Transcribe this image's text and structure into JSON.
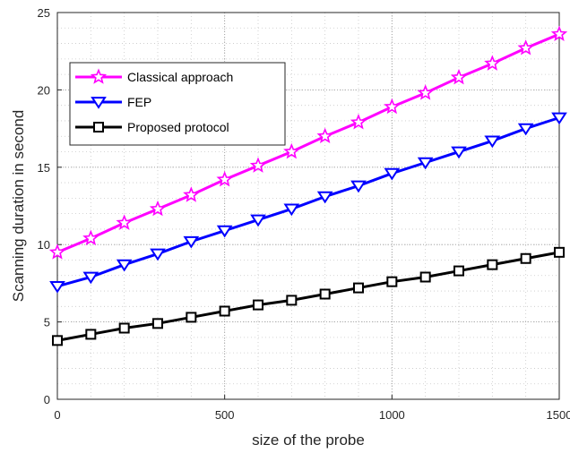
{
  "chart_data": {
    "type": "line",
    "title": "",
    "xlabel": "size of the probe",
    "ylabel": "Scanning duration in second",
    "xlim": [
      0,
      1500
    ],
    "ylim": [
      0,
      25
    ],
    "xticks": [
      0,
      500,
      1000,
      1500
    ],
    "yticks": [
      0,
      5,
      10,
      15,
      20,
      25
    ],
    "grid": true,
    "grid_style": "dotted, major and minor",
    "legend_position": "top-left",
    "x": [
      0,
      100,
      200,
      300,
      400,
      500,
      600,
      700,
      800,
      900,
      1000,
      1100,
      1200,
      1300,
      1400,
      1500
    ],
    "series": [
      {
        "name": "Classical approach",
        "color": "#ff00ff",
        "marker": "star",
        "values": [
          9.5,
          10.4,
          11.4,
          12.3,
          13.2,
          14.2,
          15.1,
          16.0,
          17.0,
          17.9,
          18.9,
          19.8,
          20.8,
          21.7,
          22.7,
          23.6
        ]
      },
      {
        "name": "FEP",
        "color": "#0000ff",
        "marker": "triangle-down",
        "values": [
          7.3,
          7.9,
          8.7,
          9.4,
          10.2,
          10.9,
          11.6,
          12.3,
          13.1,
          13.8,
          14.6,
          15.3,
          16.0,
          16.7,
          17.5,
          18.2
        ]
      },
      {
        "name": "Proposed protocol",
        "color": "#000000",
        "marker": "square",
        "values": [
          3.8,
          4.2,
          4.6,
          4.9,
          5.3,
          5.7,
          6.1,
          6.4,
          6.8,
          7.2,
          7.6,
          7.9,
          8.3,
          8.7,
          9.1,
          9.5
        ]
      }
    ]
  }
}
